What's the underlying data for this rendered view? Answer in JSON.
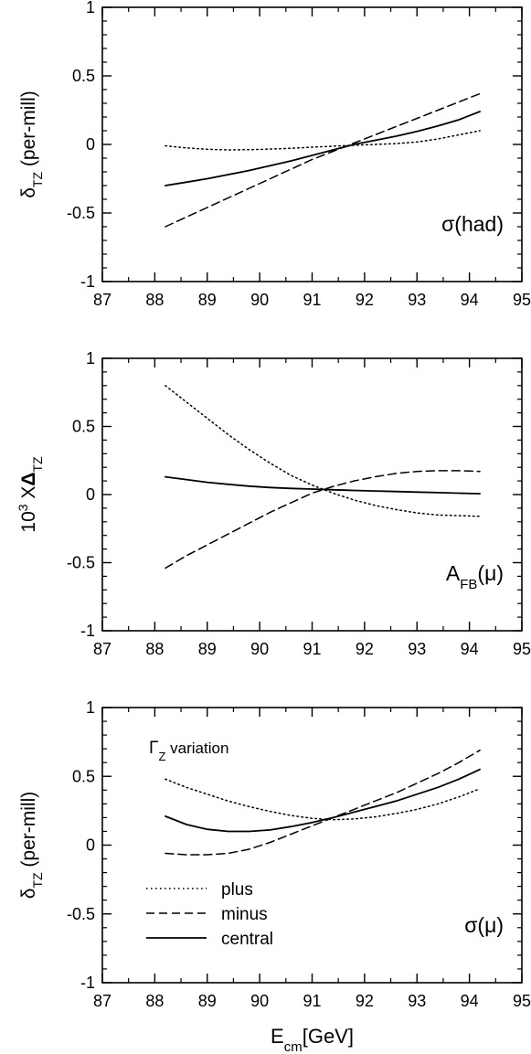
{
  "chart_data": [
    {
      "type": "line",
      "xlabel": "",
      "ylabel": {
        "main": "δ",
        "sub": "TZ",
        "rest": " (per-mill)"
      },
      "xlim": [
        87,
        95
      ],
      "ylim": [
        -1,
        1
      ],
      "xticks": [
        "87",
        "88",
        "89",
        "90",
        "91",
        "92",
        "93",
        "94",
        "95"
      ],
      "yticks": [
        "-1",
        "-0.5",
        "0",
        "0.5",
        "1"
      ],
      "annotation": {
        "text": "σ(had)",
        "position": "bottom-right"
      },
      "series": [
        {
          "style": "dotted",
          "x": [
            88.2,
            88.6,
            89.0,
            89.4,
            89.8,
            90.2,
            90.6,
            91.0,
            91.4,
            91.8,
            92.2,
            92.6,
            93.0,
            93.4,
            93.8,
            94.2
          ],
          "y": [
            -0.01,
            -0.025,
            -0.035,
            -0.04,
            -0.038,
            -0.034,
            -0.028,
            -0.02,
            -0.013,
            -0.006,
            0.0,
            0.006,
            0.018,
            0.04,
            0.07,
            0.1
          ]
        },
        {
          "style": "dashed",
          "x": [
            88.2,
            88.6,
            89.0,
            89.4,
            89.8,
            90.2,
            90.6,
            91.0,
            91.4,
            91.8,
            92.2,
            92.6,
            93.0,
            93.4,
            93.8,
            94.2
          ],
          "y": [
            -0.6,
            -0.53,
            -0.46,
            -0.39,
            -0.32,
            -0.25,
            -0.18,
            -0.11,
            -0.05,
            0.01,
            0.07,
            0.13,
            0.19,
            0.25,
            0.31,
            0.37
          ]
        },
        {
          "style": "solid",
          "x": [
            88.2,
            88.6,
            89.0,
            89.4,
            89.8,
            90.2,
            90.6,
            91.0,
            91.4,
            91.8,
            92.2,
            92.6,
            93.0,
            93.4,
            93.8,
            94.2
          ],
          "y": [
            -0.3,
            -0.275,
            -0.25,
            -0.22,
            -0.19,
            -0.155,
            -0.12,
            -0.08,
            -0.04,
            0.0,
            0.03,
            0.06,
            0.095,
            0.135,
            0.18,
            0.24
          ]
        }
      ]
    },
    {
      "type": "line",
      "xlabel": "",
      "ylabel": {
        "main": "10",
        "sup": "3",
        "rest": " X",
        "main2": "Δ",
        "sub": "TZ"
      },
      "xlim": [
        87,
        95
      ],
      "ylim": [
        -1,
        1
      ],
      "xticks": [
        "87",
        "88",
        "89",
        "90",
        "91",
        "92",
        "93",
        "94",
        "95"
      ],
      "yticks": [
        "-1",
        "-0.5",
        "0",
        "0.5",
        "1"
      ],
      "annotation": {
        "main": "A",
        "sub": "FB",
        "rest": "(μ)",
        "position": "bottom-right"
      },
      "series": [
        {
          "style": "dotted",
          "x": [
            88.2,
            88.6,
            89.0,
            89.4,
            89.8,
            90.2,
            90.6,
            91.0,
            91.4,
            91.8,
            92.2,
            92.6,
            93.0,
            93.4,
            93.8,
            94.2
          ],
          "y": [
            0.8,
            0.68,
            0.56,
            0.44,
            0.33,
            0.23,
            0.14,
            0.07,
            0.01,
            -0.04,
            -0.08,
            -0.11,
            -0.135,
            -0.15,
            -0.155,
            -0.16
          ]
        },
        {
          "style": "dashed",
          "x": [
            88.2,
            88.6,
            89.0,
            89.4,
            89.8,
            90.2,
            90.6,
            91.0,
            91.4,
            91.8,
            92.2,
            92.6,
            93.0,
            93.4,
            93.8,
            94.2
          ],
          "y": [
            -0.54,
            -0.45,
            -0.37,
            -0.29,
            -0.21,
            -0.13,
            -0.06,
            0.01,
            0.06,
            0.1,
            0.13,
            0.155,
            0.17,
            0.175,
            0.175,
            0.17
          ]
        },
        {
          "style": "solid",
          "x": [
            88.2,
            88.6,
            89.0,
            89.4,
            89.8,
            90.2,
            90.6,
            91.0,
            91.4,
            91.8,
            92.2,
            92.6,
            93.0,
            93.4,
            93.8,
            94.2
          ],
          "y": [
            0.13,
            0.11,
            0.09,
            0.075,
            0.062,
            0.052,
            0.045,
            0.04,
            0.035,
            0.03,
            0.026,
            0.022,
            0.018,
            0.014,
            0.01,
            0.006
          ]
        }
      ]
    },
    {
      "type": "line",
      "xlabel": {
        "main": "E",
        "sub": "cm",
        "rest": "[GeV]"
      },
      "ylabel": {
        "main": "δ",
        "sub": "TZ",
        "rest": " (per-mill)"
      },
      "xlim": [
        87,
        95
      ],
      "ylim": [
        -1,
        1
      ],
      "xticks": [
        "87",
        "88",
        "89",
        "90",
        "91",
        "92",
        "93",
        "94",
        "95"
      ],
      "yticks": [
        "-1",
        "-0.5",
        "0",
        "0.5",
        "1"
      ],
      "annotation": {
        "text": "σ(μ)",
        "position": "bottom-right"
      },
      "note": {
        "main": "Γ",
        "sub": "Z",
        "rest": " variation"
      },
      "legend": {
        "position": "bottom-left",
        "entries": [
          {
            "style": "dotted",
            "label": "plus"
          },
          {
            "style": "dashed",
            "label": "minus"
          },
          {
            "style": "solid",
            "label": "central"
          }
        ]
      },
      "series": [
        {
          "name": "plus",
          "style": "dotted",
          "x": [
            88.2,
            88.6,
            89.0,
            89.4,
            89.8,
            90.2,
            90.6,
            91.0,
            91.4,
            91.8,
            92.2,
            92.6,
            93.0,
            93.4,
            93.8,
            94.2
          ],
          "y": [
            0.48,
            0.42,
            0.37,
            0.32,
            0.28,
            0.245,
            0.215,
            0.195,
            0.185,
            0.19,
            0.205,
            0.23,
            0.26,
            0.3,
            0.35,
            0.41
          ]
        },
        {
          "name": "minus",
          "style": "dashed",
          "x": [
            88.2,
            88.6,
            89.0,
            89.4,
            89.8,
            90.2,
            90.6,
            91.0,
            91.4,
            91.8,
            92.2,
            92.6,
            93.0,
            93.4,
            93.8,
            94.2
          ],
          "y": [
            -0.06,
            -0.07,
            -0.07,
            -0.06,
            -0.03,
            0.02,
            0.08,
            0.14,
            0.2,
            0.26,
            0.32,
            0.38,
            0.45,
            0.52,
            0.6,
            0.69
          ]
        },
        {
          "name": "central",
          "style": "solid",
          "x": [
            88.2,
            88.6,
            89.0,
            89.4,
            89.8,
            90.2,
            90.6,
            91.0,
            91.4,
            91.8,
            92.2,
            92.6,
            93.0,
            93.4,
            93.8,
            94.2
          ],
          "y": [
            0.21,
            0.15,
            0.115,
            0.1,
            0.1,
            0.11,
            0.135,
            0.165,
            0.2,
            0.24,
            0.28,
            0.32,
            0.37,
            0.42,
            0.48,
            0.55
          ]
        }
      ]
    }
  ]
}
